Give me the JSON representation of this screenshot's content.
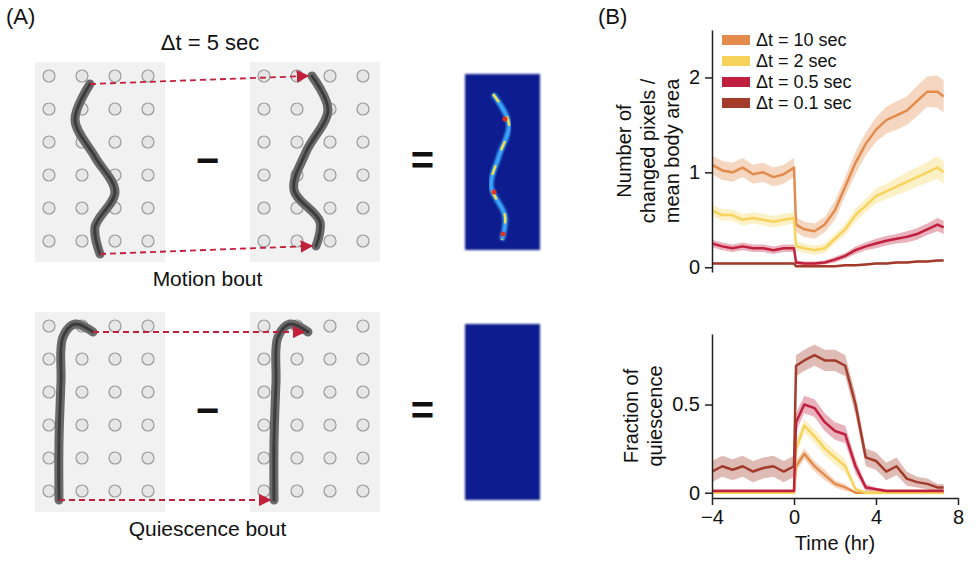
{
  "panel_a": {
    "label": "(A)",
    "interval": "Δt = 5 sec",
    "rows": [
      {
        "label": "Motion bout",
        "minus": "−",
        "equals": "="
      },
      {
        "label": "Quiescence bout",
        "minus": "−",
        "equals": "="
      }
    ]
  },
  "panel_b": {
    "label": "(B)"
  },
  "chart_data": [
    {
      "type": "line",
      "y_label": "Number of changed pixels / mean body area",
      "x": [
        -4,
        -3.5,
        -3,
        -2.5,
        -2,
        -1.5,
        -1,
        -0.5,
        0,
        0.1,
        0.5,
        1,
        1.5,
        2,
        2.5,
        3,
        3.5,
        4,
        4.5,
        5,
        5.5,
        6,
        6.5,
        7,
        7.3
      ],
      "xlim": [
        -4,
        8
      ],
      "ylim": [
        -0.05,
        2.5
      ],
      "yticks": [
        0,
        1,
        2
      ],
      "tick_labels": "y",
      "legend": "upper left",
      "grid": false,
      "series": [
        {
          "name": "Δt = 10 sec",
          "color": "#e38b4c",
          "values": [
            1.08,
            1.02,
            1.0,
            1.05,
            0.98,
            1.0,
            0.95,
            0.98,
            1.05,
            0.45,
            0.4,
            0.38,
            0.45,
            0.6,
            0.85,
            1.1,
            1.3,
            1.45,
            1.55,
            1.6,
            1.65,
            1.75,
            1.85,
            1.85,
            1.8
          ],
          "error": [
            0.1,
            0.1,
            0.1,
            0.1,
            0.1,
            0.1,
            0.1,
            0.1,
            0.1,
            0.08,
            0.08,
            0.08,
            0.08,
            0.1,
            0.1,
            0.12,
            0.12,
            0.13,
            0.14,
            0.15,
            0.15,
            0.16,
            0.16,
            0.17,
            0.17
          ]
        },
        {
          "name": "Δt = 2 sec",
          "color": "#f7d35c",
          "values": [
            0.6,
            0.55,
            0.55,
            0.5,
            0.52,
            0.5,
            0.48,
            0.5,
            0.52,
            0.22,
            0.2,
            0.18,
            0.2,
            0.3,
            0.4,
            0.55,
            0.65,
            0.75,
            0.8,
            0.85,
            0.9,
            0.95,
            1.0,
            1.05,
            1.0
          ],
          "error": [
            0.06,
            0.06,
            0.06,
            0.06,
            0.06,
            0.06,
            0.06,
            0.06,
            0.06,
            0.05,
            0.05,
            0.05,
            0.05,
            0.05,
            0.06,
            0.07,
            0.07,
            0.08,
            0.08,
            0.09,
            0.1,
            0.1,
            0.11,
            0.12,
            0.12
          ]
        },
        {
          "name": "Δt = 0.5 sec",
          "color": "#c01f3d",
          "values": [
            0.25,
            0.22,
            0.2,
            0.22,
            0.2,
            0.2,
            0.18,
            0.2,
            0.2,
            0.05,
            0.04,
            0.04,
            0.05,
            0.08,
            0.12,
            0.18,
            0.22,
            0.25,
            0.28,
            0.3,
            0.32,
            0.35,
            0.4,
            0.45,
            0.42
          ],
          "error": [
            0.04,
            0.04,
            0.04,
            0.04,
            0.04,
            0.04,
            0.04,
            0.04,
            0.04,
            0.02,
            0.02,
            0.02,
            0.02,
            0.03,
            0.03,
            0.04,
            0.04,
            0.05,
            0.05,
            0.05,
            0.06,
            0.06,
            0.06,
            0.07,
            0.07
          ]
        },
        {
          "name": "Δt = 0.1 sec",
          "color": "#a33b2b",
          "values": [
            0.04,
            0.04,
            0.04,
            0.04,
            0.04,
            0.04,
            0.04,
            0.04,
            0.04,
            0.01,
            0.01,
            0.01,
            0.01,
            0.01,
            0.02,
            0.02,
            0.03,
            0.04,
            0.04,
            0.05,
            0.05,
            0.06,
            0.06,
            0.07,
            0.07
          ],
          "error": [
            0.01,
            0.01,
            0.01,
            0.01,
            0.01,
            0.01,
            0.01,
            0.01,
            0.01,
            0.01,
            0.01,
            0.01,
            0.01,
            0.01,
            0.01,
            0.01,
            0.01,
            0.01,
            0.01,
            0.01,
            0.01,
            0.01,
            0.01,
            0.01,
            0.01
          ]
        }
      ]
    },
    {
      "type": "line",
      "x_label": "Time (hr)",
      "y_label": "Fraction of quiescence",
      "x": [
        -4,
        -3.5,
        -3,
        -2.5,
        -2,
        -1.5,
        -1,
        -0.5,
        0,
        0.1,
        0.5,
        1,
        1.5,
        2,
        2.5,
        3,
        3.5,
        4,
        4.5,
        5,
        5.5,
        6,
        6.5,
        7,
        7.3
      ],
      "xlim": [
        -4,
        8
      ],
      "xticks": [
        {
          "value": -4,
          "label": "−4"
        },
        0,
        4,
        8
      ],
      "ylim": [
        -0.03,
        0.9
      ],
      "yticks": [
        0,
        0.5
      ],
      "grid": false,
      "series": [
        {
          "color": "#e38b4c",
          "values": [
            0,
            0,
            0,
            0,
            0,
            0,
            0,
            0,
            0,
            0.15,
            0.22,
            0.15,
            0.1,
            0.05,
            0.03,
            0,
            0,
            0,
            0,
            0,
            0,
            0,
            0,
            0,
            0
          ],
          "error": [
            0,
            0,
            0,
            0,
            0,
            0,
            0,
            0,
            0,
            0.03,
            0.03,
            0.03,
            0.03,
            0.02,
            0.02,
            0,
            0,
            0,
            0,
            0,
            0,
            0,
            0,
            0,
            0
          ]
        },
        {
          "color": "#f7d35c",
          "values": [
            0,
            0,
            0,
            0,
            0,
            0,
            0,
            0,
            0,
            0.25,
            0.38,
            0.32,
            0.25,
            0.2,
            0.15,
            0.02,
            0,
            0,
            0,
            0,
            0,
            0,
            0,
            0,
            0
          ],
          "error": [
            0,
            0,
            0,
            0,
            0,
            0,
            0,
            0,
            0,
            0.04,
            0.04,
            0.04,
            0.04,
            0.04,
            0.04,
            0.01,
            0.01,
            0.01,
            0.01,
            0.01,
            0.01,
            0.01,
            0.01,
            0.01,
            0.01
          ]
        },
        {
          "color": "#c01f3d",
          "values": [
            0.01,
            0.01,
            0.01,
            0.01,
            0.01,
            0.01,
            0.01,
            0.01,
            0.01,
            0.4,
            0.5,
            0.48,
            0.4,
            0.35,
            0.33,
            0.15,
            0.03,
            0.02,
            0.01,
            0.01,
            0.01,
            0.01,
            0.01,
            0.01,
            0.01
          ],
          "error": [
            0.01,
            0.01,
            0.01,
            0.01,
            0.01,
            0.01,
            0.01,
            0.01,
            0.01,
            0.05,
            0.05,
            0.05,
            0.05,
            0.05,
            0.05,
            0.04,
            0.02,
            0.01,
            0.01,
            0.01,
            0.01,
            0.01,
            0.01,
            0.01,
            0.01
          ]
        },
        {
          "color": "#a33b2b",
          "values": [
            0.12,
            0.15,
            0.13,
            0.15,
            0.12,
            0.14,
            0.15,
            0.12,
            0.15,
            0.72,
            0.75,
            0.78,
            0.75,
            0.75,
            0.72,
            0.5,
            0.2,
            0.18,
            0.12,
            0.15,
            0.08,
            0.06,
            0.05,
            0.03,
            0.03
          ],
          "error": [
            0.06,
            0.06,
            0.06,
            0.06,
            0.06,
            0.06,
            0.06,
            0.06,
            0.06,
            0.06,
            0.06,
            0.06,
            0.06,
            0.06,
            0.06,
            0.06,
            0.05,
            0.05,
            0.05,
            0.05,
            0.04,
            0.03,
            0.03,
            0.02,
            0.02
          ]
        }
      ]
    }
  ]
}
